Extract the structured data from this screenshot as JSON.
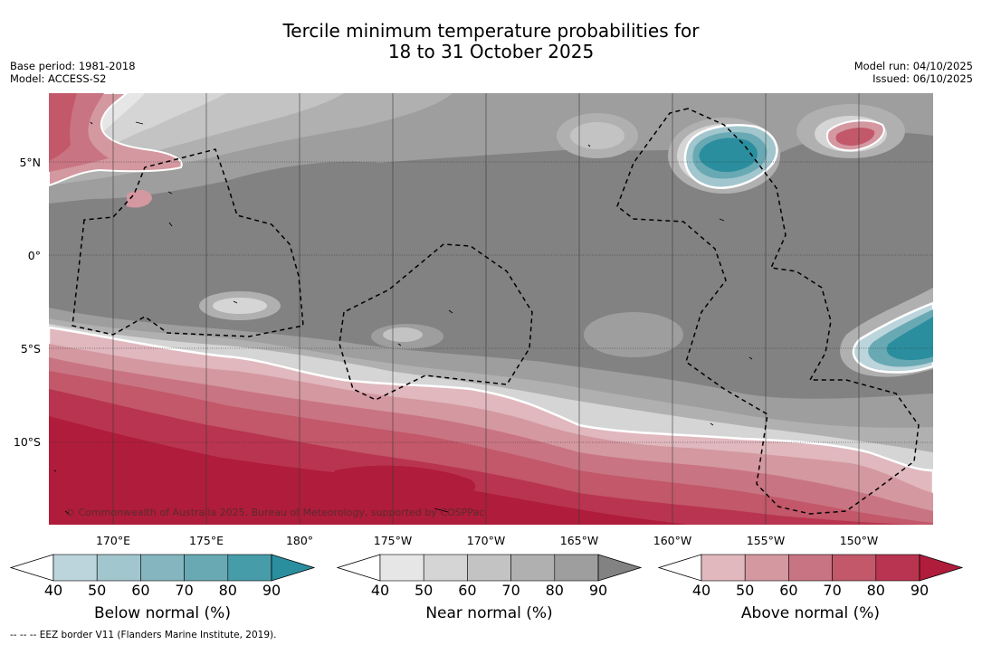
{
  "title": {
    "line1": "Tercile minimum temperature probabilities for",
    "line2": "18 to 31 October 2025"
  },
  "meta_left": {
    "base_period": "Base period: 1981-2018",
    "model": "Model: ACCESS-S2"
  },
  "meta_right": {
    "model_run": "Model run: 04/10/2025",
    "issued": "Issued: 06/10/2025"
  },
  "map": {
    "lat_labels": [
      "5°N",
      "0°",
      "5°S",
      "10°S"
    ],
    "lon_labels": [
      "170°E",
      "175°E",
      "180°",
      "175°W",
      "170°W",
      "165°W",
      "160°W",
      "155°W",
      "150°W"
    ],
    "copyright": "© Commonwealth of Australia 2025, Bureau of Meteorology, supported by COSPPac",
    "colors": {
      "ocean_near": "#828282",
      "land_outline": "#000000"
    }
  },
  "colorbars": [
    {
      "id": "below",
      "title": "Below normal (%)",
      "ticks": [
        "40",
        "50",
        "60",
        "70",
        "80",
        "90"
      ],
      "colors": [
        "#bcd4db",
        "#a2c6cd",
        "#85b6c0",
        "#68a9b4",
        "#479ca9",
        "#2a8e9e"
      ]
    },
    {
      "id": "near",
      "title": "Near normal (%)",
      "ticks": [
        "40",
        "50",
        "60",
        "70",
        "80",
        "90"
      ],
      "colors": [
        "#e6e6e6",
        "#d5d5d5",
        "#c3c3c3",
        "#b0b0b0",
        "#9e9e9e",
        "#828282"
      ]
    },
    {
      "id": "above",
      "title": "Above normal (%)",
      "ticks": [
        "40",
        "50",
        "60",
        "70",
        "80",
        "90"
      ],
      "colors": [
        "#e0b8be",
        "#d498a0",
        "#c97482",
        "#c2586a",
        "#b93450",
        "#b01c3b"
      ]
    }
  ],
  "footnote": "--  --  -- EEZ border V11 (Flanders Marine Institute, 2019)."
}
